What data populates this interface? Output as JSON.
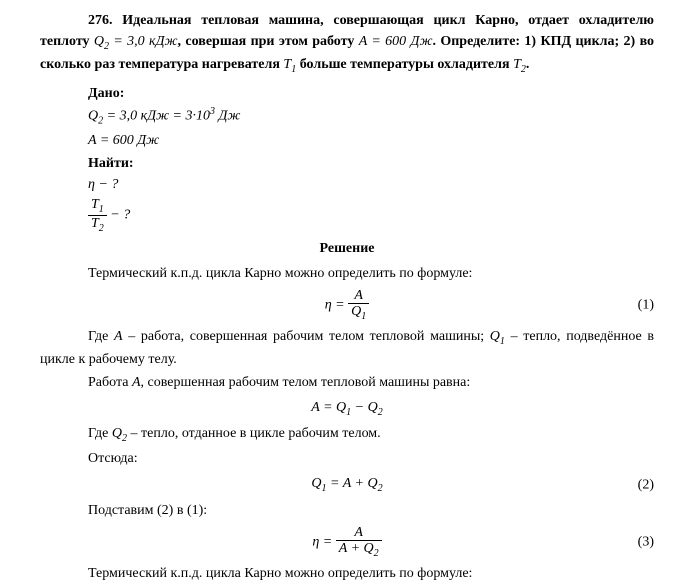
{
  "problem": {
    "number": "276.",
    "text_part1": "Идеальная тепловая машина, совершающая цикл Карно, отдает охладителю теплоту ",
    "eq_q2_given": "Q",
    "q2_sub": "2",
    "q2_eq": " = 3,0 ",
    "q2_unit": "кДж",
    "text_part2": ", совершая при этом работу ",
    "eq_a_given": "A",
    "a_eq": " = 600 ",
    "a_unit": "Дж",
    "text_part3": ". Определите: 1) КПД цикла; 2) во сколько раз температура нагревателя ",
    "t1_sym": "T",
    "t1_sub": "1",
    "text_part4": " больше температуры охладителя ",
    "t2_sym": "T",
    "t2_sub": "2",
    "text_end": "."
  },
  "given": {
    "label": "Дано:",
    "line1_q": "Q",
    "line1_sub": "2",
    "line1_val": " = 3,0 кДж = 3·10",
    "line1_exp": "3",
    "line1_unit": " Дж",
    "line2_a": "A",
    "line2_val": " = 600 Дж",
    "find_label": "Найти:",
    "eta": "η",
    "eta_q": " − ?",
    "t1": "T",
    "t1_sub": "1",
    "t2": "T",
    "t2_sub": "2",
    "ratio_q": " − ?"
  },
  "solution": {
    "title": "Решение",
    "text1": "Термический к.п.д. цикла Карно можно определить по формуле:",
    "eq1_lhs": "η = ",
    "eq1_num": "A",
    "eq1_den_q": "Q",
    "eq1_den_sub": "1",
    "eq1_num_label": "(1)",
    "text2_part1": "Где ",
    "text2_a": "A",
    "text2_part2": " – работа, совершенная рабочим телом тепловой машины; ",
    "text2_q1": "Q",
    "text2_q1_sub": "1",
    "text2_part3": " – тепло, подведённое в цикле к рабочему телу.",
    "text3_part1": " Работа ",
    "text3_a": "A",
    "text3_part2": ", совершенная рабочим телом тепловой машины равна:",
    "eq2": "A = Q",
    "eq2_sub1": "1",
    "eq2_minus": " − Q",
    "eq2_sub2": "2",
    "text4_part1": "Где ",
    "text4_q2": "Q",
    "text4_q2_sub": "2",
    "text4_part2": " – тепло, отданное в цикле рабочим телом.",
    "text5": "Отсюда:",
    "eq3_lhs": "Q",
    "eq3_sub": "1",
    "eq3_rhs": " = A + Q",
    "eq3_sub2": "2",
    "eq3_label": "(2)",
    "text6": "Подставим (2) в (1):",
    "eq4_lhs": "η = ",
    "eq4_num": "A",
    "eq4_den": "A + Q",
    "eq4_den_sub": "2",
    "eq4_label": "(3)",
    "text7": "Термический к.п.д. цикла Карно можно определить по формуле:"
  }
}
